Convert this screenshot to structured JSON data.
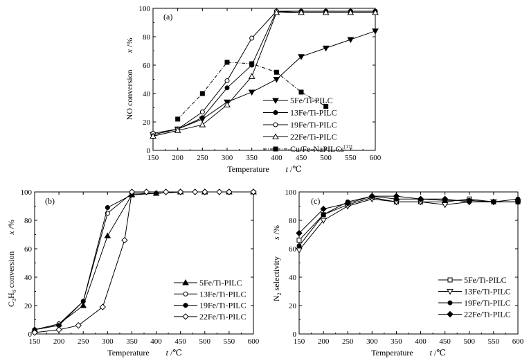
{
  "chart_data": [
    {
      "panel": "(a)",
      "type": "line",
      "xlabel": "Temperature",
      "xlabel_var": "t",
      "xlabel_unit": "/℃",
      "ylabel": "NO conversion",
      "ylabel_var": "x",
      "ylabel_unit": "/%",
      "xlim": [
        150,
        600
      ],
      "ylim": [
        0,
        100
      ],
      "xticks": [
        150,
        200,
        250,
        300,
        350,
        400,
        450,
        500,
        550,
        600
      ],
      "yticks": [
        0,
        20,
        40,
        60,
        80,
        100
      ],
      "legend_position": "bottom-right",
      "series": [
        {
          "name": "5Fe/Ti-PILC",
          "marker": "triangle-down-filled",
          "dash": "solid",
          "x": [
            150,
            200,
            250,
            300,
            350,
            400,
            450,
            500,
            550,
            600
          ],
          "y": [
            11,
            15,
            22,
            34,
            41,
            50,
            66,
            72,
            78,
            84
          ]
        },
        {
          "name": "13Fe/Ti-PILC",
          "marker": "circle-filled",
          "dash": "solid",
          "x": [
            150,
            200,
            250,
            300,
            350,
            400,
            450,
            500,
            550,
            600
          ],
          "y": [
            11,
            15,
            23,
            44,
            60,
            98,
            98,
            98,
            98,
            98
          ]
        },
        {
          "name": "19Fe/Ti-PILC",
          "marker": "circle-open",
          "dash": "solid",
          "x": [
            150,
            200,
            250,
            300,
            350,
            400,
            450,
            500,
            550,
            600
          ],
          "y": [
            12,
            15,
            27,
            49,
            79,
            98,
            97,
            97,
            97,
            97
          ]
        },
        {
          "name": "22Fe/Ti-PILC",
          "marker": "triangle-up-open",
          "dash": "solid",
          "x": [
            150,
            200,
            250,
            300,
            350,
            400,
            450,
            500,
            550,
            600
          ],
          "y": [
            10,
            14,
            18,
            32,
            52,
            97,
            97,
            97,
            97,
            97
          ]
        },
        {
          "name": "Cu/Fe-NaPILCs",
          "name_sup": "[17]",
          "marker": "square-filled",
          "dash": "dashdot",
          "x": [
            200,
            250,
            300,
            350,
            400,
            450,
            500
          ],
          "y": [
            22,
            40,
            62,
            61,
            55,
            41,
            31
          ]
        }
      ]
    },
    {
      "panel": "(b)",
      "type": "line",
      "xlabel": "Temperature",
      "xlabel_var": "t",
      "xlabel_unit": "/℃",
      "ylabel_pre": "C",
      "ylabel_sub1": "3",
      "ylabel_mid": "H",
      "ylabel_sub2": "6",
      "ylabel_post": " conversion",
      "ylabel_var": "x",
      "ylabel_unit": "/%",
      "xlim": [
        150,
        600
      ],
      "ylim": [
        0,
        100
      ],
      "xticks": [
        150,
        200,
        250,
        300,
        350,
        400,
        450,
        500,
        550,
        600
      ],
      "yticks": [
        0,
        20,
        40,
        60,
        80,
        100
      ],
      "legend_position": "bottom-right",
      "series": [
        {
          "name": "5Fe/Ti-PILC",
          "marker": "triangle-up-filled",
          "dash": "solid",
          "x": [
            150,
            200,
            250,
            300,
            350,
            400,
            450,
            500,
            550,
            600
          ],
          "y": [
            3,
            7,
            20,
            69,
            98,
            99,
            100,
            100,
            100,
            100
          ]
        },
        {
          "name": "13Fe/Ti-PILC",
          "marker": "circle-open",
          "dash": "solid",
          "x": [
            150,
            200,
            250,
            300,
            350,
            400,
            450,
            500,
            550,
            600
          ],
          "y": [
            3,
            7,
            23,
            85,
            99,
            99,
            100,
            100,
            100,
            100
          ]
        },
        {
          "name": "19Fe/Ti-PILC",
          "marker": "circle-filled",
          "dash": "solid",
          "x": [
            150,
            200,
            250,
            300,
            350,
            400,
            450,
            500,
            550,
            600
          ],
          "y": [
            3,
            6,
            23,
            89,
            98,
            99,
            100,
            100,
            100,
            100
          ]
        },
        {
          "name": "22Fe/Ti-PILC",
          "marker": "diamond-open",
          "dash": "solid",
          "x": [
            150,
            200,
            240,
            290,
            335,
            350,
            380,
            420,
            450,
            480,
            500,
            530,
            550,
            600
          ],
          "y": [
            1,
            3,
            6,
            19,
            66,
            100,
            100,
            100,
            100,
            100,
            100,
            100,
            100,
            100
          ]
        }
      ]
    },
    {
      "panel": "(c)",
      "type": "line",
      "xlabel": "Temperature",
      "xlabel_var": "t",
      "xlabel_unit": "/℃",
      "ylabel_pre": "N",
      "ylabel_sub1": "2",
      "ylabel_post": " selectivity",
      "ylabel_var": "s",
      "ylabel_unit": "/%",
      "xlim": [
        150,
        600
      ],
      "ylim": [
        0,
        100
      ],
      "xticks": [
        150,
        200,
        250,
        300,
        350,
        400,
        450,
        500,
        550,
        600
      ],
      "yticks": [
        0,
        20,
        40,
        60,
        80,
        100
      ],
      "legend_position": "bottom-right",
      "series": [
        {
          "name": "5Fe/Ti-PILC",
          "marker": "square-open",
          "dash": "solid",
          "x": [
            150,
            200,
            250,
            300,
            350,
            400,
            450,
            500,
            550,
            600
          ],
          "y": [
            66,
            84,
            91,
            96,
            93,
            93,
            93,
            95,
            93,
            93
          ]
        },
        {
          "name": "13Fe/Ti-PILC",
          "marker": "triangle-down-open",
          "dash": "solid",
          "x": [
            150,
            200,
            250,
            300,
            350,
            400,
            450,
            500,
            550,
            600
          ],
          "y": [
            59,
            80,
            90,
            95,
            93,
            93,
            91,
            93,
            93,
            93
          ]
        },
        {
          "name": "19Fe/Ti-PILC",
          "marker": "circle-filled",
          "dash": "solid",
          "x": [
            150,
            200,
            250,
            300,
            350,
            400,
            450,
            500,
            550,
            600
          ],
          "y": [
            62,
            84,
            93,
            97,
            95,
            95,
            94,
            94,
            93,
            95
          ]
        },
        {
          "name": "22Fe/Ti-PILC",
          "marker": "diamond-filled",
          "dash": "solid",
          "x": [
            150,
            200,
            250,
            300,
            350,
            400,
            450,
            500,
            550,
            600
          ],
          "y": [
            71,
            88,
            92,
            97,
            97,
            95,
            95,
            93,
            93,
            93
          ]
        }
      ]
    }
  ]
}
